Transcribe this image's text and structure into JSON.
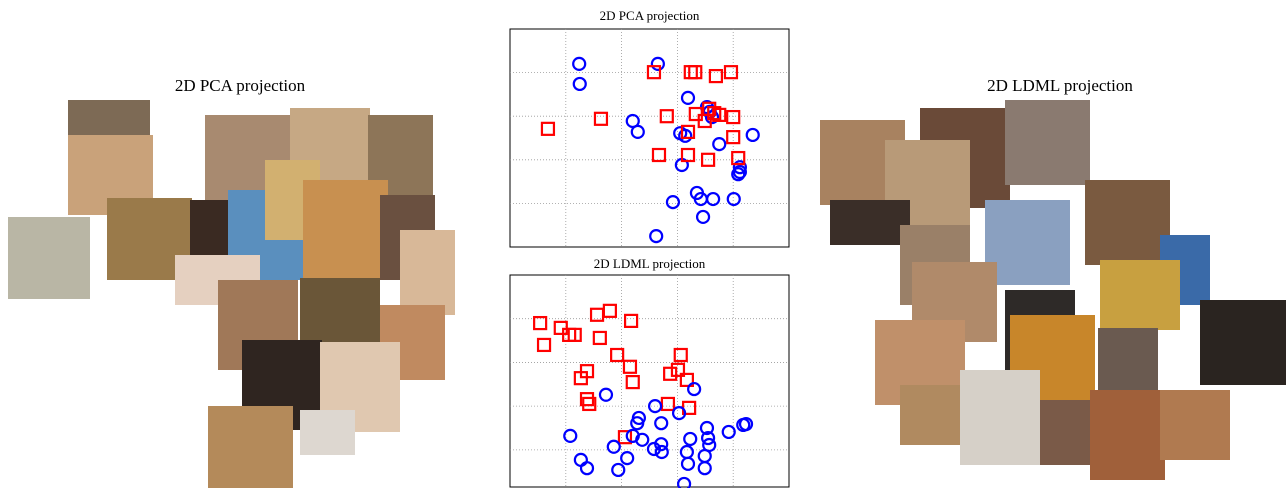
{
  "collages": [
    {
      "title": "2D PCA projection"
    },
    {
      "title": "2D LDML projection"
    }
  ],
  "chart_data": [
    {
      "type": "scatter",
      "title": "2D PCA projection",
      "xlim": [
        0,
        5
      ],
      "ylim": [
        0,
        5
      ],
      "xticks": [
        1,
        2,
        3,
        4
      ],
      "yticks": [
        1,
        2,
        3,
        4
      ],
      "grid": true,
      "series": [
        {
          "color": "#0000ff",
          "marker": "circle",
          "x": [
            1.24,
            1.25,
            2.65,
            3.19,
            2.2,
            2.29,
            3.05,
            3.14,
            3.53,
            3.58,
            4.35,
            3.75,
            4.12,
            4.09,
            3.08,
            3.35,
            3.42,
            3.64,
            4.01,
            2.92,
            3.46,
            2.62,
            3.62,
            4.12
          ],
          "values": [
            4.2,
            3.74,
            4.2,
            3.42,
            2.89,
            2.64,
            2.61,
            2.55,
            3.21,
            3.1,
            2.57,
            2.36,
            1.83,
            1.67,
            1.88,
            1.24,
            1.1,
            1.1,
            1.1,
            1.03,
            0.69,
            0.25,
            2.98,
            1.72
          ]
        },
        {
          "color": "#ff0000",
          "marker": "square",
          "x": [
            0.68,
            1.63,
            2.58,
            3.24,
            3.32,
            3.69,
            3.96,
            2.81,
            3.57,
            3.66,
            3.49,
            4.0,
            3.19,
            4.0,
            2.67,
            3.19,
            3.55,
            4.09,
            3.33,
            3.75
          ],
          "values": [
            2.71,
            2.94,
            4.01,
            4.01,
            4.01,
            3.92,
            4.01,
            3.0,
            3.17,
            3.07,
            2.89,
            2.98,
            2.64,
            2.52,
            2.11,
            2.11,
            2.0,
            2.04,
            3.05,
            3.03
          ]
        }
      ]
    },
    {
      "type": "scatter",
      "title": "2D LDML projection",
      "xlim": [
        0,
        5
      ],
      "ylim": [
        0.15,
        5
      ],
      "xticks": [
        1,
        2,
        3,
        4
      ],
      "yticks": [
        1,
        2,
        3,
        4
      ],
      "grid": true,
      "series": [
        {
          "color": "#ff0000",
          "marker": "square",
          "x": [
            0.54,
            0.91,
            1.06,
            1.16,
            0.61,
            1.56,
            1.79,
            2.17,
            1.61,
            1.92,
            2.15,
            1.38,
            1.27,
            2.2,
            2.87,
            3.06,
            3.01,
            3.17,
            1.38,
            1.42,
            2.83,
            3.21,
            2.06
          ],
          "values": [
            3.9,
            3.79,
            3.63,
            3.63,
            3.4,
            4.09,
            4.18,
            3.95,
            3.56,
            3.17,
            2.9,
            2.8,
            2.64,
            2.55,
            2.74,
            3.17,
            2.83,
            2.6,
            2.16,
            2.05,
            2.05,
            1.96,
            1.29
          ]
        },
        {
          "color": "#0000ff",
          "marker": "circle",
          "x": [
            1.72,
            3.3,
            2.6,
            2.31,
            2.28,
            2.71,
            3.03,
            1.08,
            2.2,
            2.37,
            2.58,
            2.72,
            3.23,
            3.53,
            3.55,
            3.17,
            3.57,
            3.92,
            4.18,
            4.23,
            1.27,
            1.38,
            2.1,
            1.94,
            3.19,
            3.49,
            3.49,
            3.12,
            2.71,
            1.86
          ],
          "values": [
            2.26,
            2.39,
            2.0,
            1.73,
            1.61,
            1.61,
            1.84,
            1.32,
            1.32,
            1.23,
            1.02,
            0.95,
            1.25,
            1.5,
            1.27,
            0.95,
            1.11,
            1.41,
            1.57,
            1.59,
            0.77,
            0.58,
            0.81,
            0.54,
            0.68,
            0.86,
            0.58,
            0.22,
            1.13,
            1.07
          ]
        }
      ]
    }
  ]
}
